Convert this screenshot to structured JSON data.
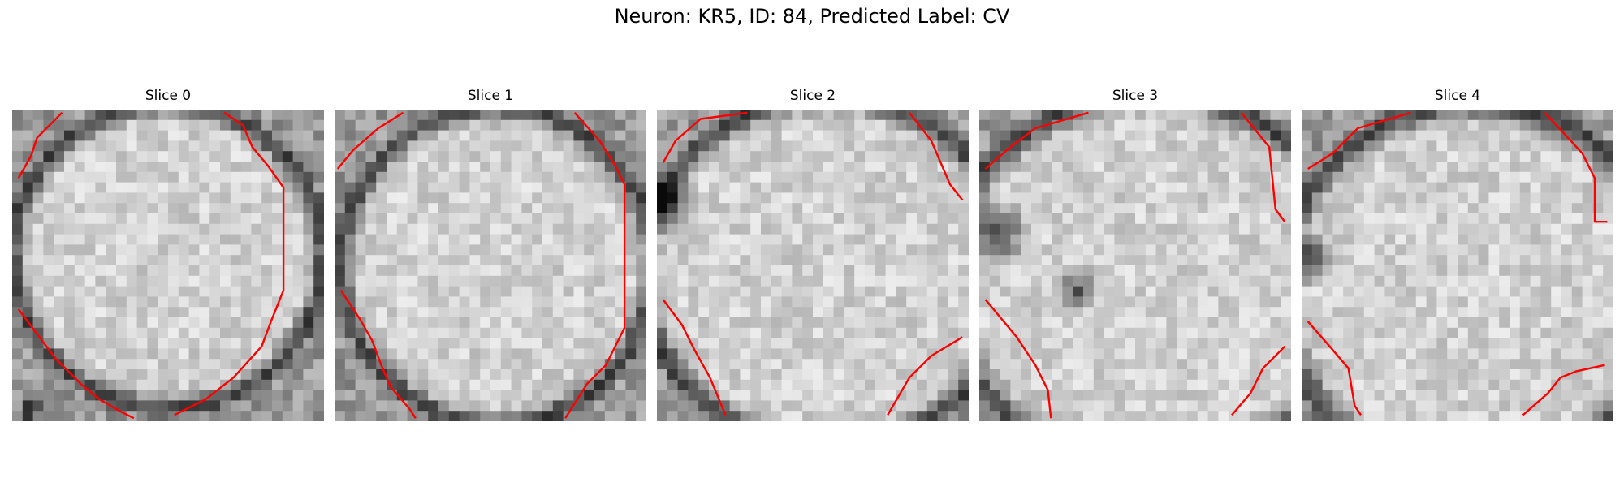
{
  "figure": {
    "title": "Neuron: KR5, ID: 84, Predicted Label: CV"
  },
  "panels": [
    {
      "title": "Slice 0"
    },
    {
      "title": "Slice 1"
    },
    {
      "title": "Slice 2"
    },
    {
      "title": "Slice 3"
    },
    {
      "title": "Slice 4"
    }
  ],
  "colors": {
    "contour": "#ff0000"
  }
}
